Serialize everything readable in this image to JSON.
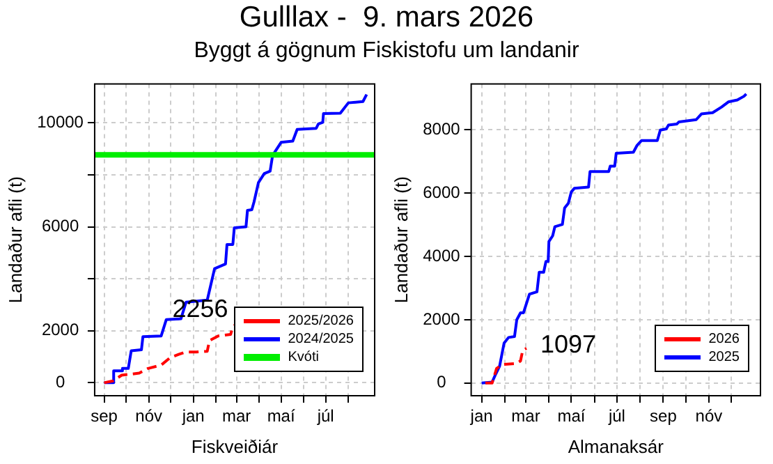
{
  "chart_data": [
    {
      "type": "line",
      "title": "Gulllax -  9. mars 2026",
      "subtitle": "Byggt á gögnum Fiskistofu um landanir",
      "xlabel": "Fiskveiðiár",
      "ylabel": "Landaður afli (t)",
      "xlim": [
        "2025-08-19",
        "2026-09-06"
      ],
      "ylim": [
        -500,
        11500
      ],
      "xticks": [
        {
          "value": "2025-09-01",
          "label": "sep"
        },
        {
          "value": "2025-10-01",
          "label": null
        },
        {
          "value": "2025-11-01",
          "label": "nóv"
        },
        {
          "value": "2025-12-01",
          "label": null
        },
        {
          "value": "2026-01-01",
          "label": "jan"
        },
        {
          "value": "2026-02-01",
          "label": null
        },
        {
          "value": "2026-03-01",
          "label": "mar"
        },
        {
          "value": "2026-04-01",
          "label": null
        },
        {
          "value": "2026-05-01",
          "label": "maí"
        },
        {
          "value": "2026-06-01",
          "label": null
        },
        {
          "value": "2026-07-01",
          "label": "júl"
        },
        {
          "value": "2026-08-01",
          "label": null
        }
      ],
      "yticks": [
        0,
        2000,
        {
          "value": 4000,
          "label": null
        },
        6000,
        {
          "value": 8000,
          "label": null
        },
        10000
      ],
      "grid": true,
      "legend": "bottom right",
      "marker": "none",
      "series": [
        {
          "name": "2025/2026",
          "color": "#ff0000",
          "line_style": "dashed",
          "x": [
            "2025-09-01",
            "2025-09-13",
            "2025-09-25",
            "2025-10-19",
            "2025-10-31",
            "2025-11-18",
            "2025-11-30",
            "2025-12-12",
            "2025-12-21",
            "2026-01-05",
            "2026-01-20",
            "2026-01-23",
            "2026-02-04",
            "2026-02-21",
            "2026-02-24",
            "2026-03-01"
          ],
          "values": [
            0,
            70,
            290,
            370,
            550,
            680,
            960,
            1090,
            1180,
            1180,
            1210,
            1620,
            1800,
            1860,
            2160,
            2256
          ],
          "value_labels": [
            null,
            null,
            null,
            null,
            null,
            null,
            null,
            null,
            null,
            null,
            null,
            null,
            null,
            null,
            null,
            "2256"
          ]
        },
        {
          "name": "2024/2025",
          "color": "#0000ff",
          "line_style": "solid",
          "x": [
            "2025-09-01",
            "2025-09-13",
            "2025-09-14",
            "2025-09-25",
            "2025-09-26",
            "2025-10-04",
            "2025-10-08",
            "2025-10-22",
            "2025-10-24",
            "2025-11-18",
            "2025-11-25",
            "2025-12-15",
            "2025-12-22",
            "2026-01-20",
            "2026-01-30",
            "2026-02-14",
            "2026-02-16",
            "2026-02-24",
            "2026-02-26",
            "2026-03-14",
            "2026-03-16",
            "2026-03-22",
            "2026-03-25",
            "2026-03-31",
            "2026-04-08",
            "2026-04-16",
            "2026-04-19",
            "2026-04-22",
            "2026-05-01",
            "2026-05-17",
            "2026-05-23",
            "2026-06-18",
            "2026-06-21",
            "2026-06-27",
            "2026-06-28",
            "2026-07-21",
            "2026-08-01",
            "2026-08-21",
            "2026-08-26"
          ],
          "values": [
            0,
            0,
            460,
            460,
            550,
            550,
            1230,
            1270,
            1770,
            1800,
            2430,
            2460,
            3100,
            3180,
            4390,
            4570,
            5320,
            5320,
            5960,
            6000,
            6630,
            6660,
            6960,
            7700,
            8050,
            8140,
            8680,
            8860,
            9250,
            9300,
            9750,
            9790,
            9960,
            10020,
            10360,
            10370,
            10770,
            10820,
            11090
          ]
        }
      ],
      "ref_lines": [
        {
          "axis": "y",
          "value": 8770,
          "label": "Kvóti",
          "color": "#00ee00"
        }
      ]
    },
    {
      "type": "line",
      "xlabel": "Almanaksár",
      "ylabel": "Landaður afli (t)",
      "xlim": [
        "2025-12-18",
        "2027-01-09"
      ],
      "ylim": [
        -400,
        9450
      ],
      "xticks": [
        {
          "value": "2026-01-01",
          "label": "jan"
        },
        {
          "value": "2026-02-01",
          "label": null
        },
        {
          "value": "2026-03-01",
          "label": "mar"
        },
        {
          "value": "2026-04-01",
          "label": null
        },
        {
          "value": "2026-05-01",
          "label": "maí"
        },
        {
          "value": "2026-06-01",
          "label": null
        },
        {
          "value": "2026-07-01",
          "label": "júl"
        },
        {
          "value": "2026-08-01",
          "label": null
        },
        {
          "value": "2026-09-01",
          "label": "sep"
        },
        {
          "value": "2026-10-01",
          "label": null
        },
        {
          "value": "2026-11-01",
          "label": "nóv"
        },
        {
          "value": "2026-12-01",
          "label": null
        }
      ],
      "yticks": [
        0,
        2000,
        4000,
        6000,
        8000
      ],
      "grid": true,
      "legend": "bottom right",
      "marker": "none",
      "series": [
        {
          "name": "2026",
          "color": "#ff0000",
          "line_style": "dashed",
          "x": [
            "2026-01-06",
            "2026-01-15",
            "2026-01-21",
            "2026-01-25",
            "2026-01-31",
            "2026-02-17",
            "2026-02-22",
            "2026-02-25",
            "2026-03-02"
          ],
          "values": [
            0,
            0,
            460,
            530,
            590,
            620,
            700,
            1040,
            1097
          ],
          "value_labels": [
            null,
            null,
            null,
            null,
            null,
            null,
            null,
            null,
            "1097"
          ]
        },
        {
          "name": "2025",
          "color": "#0000ff",
          "line_style": "solid",
          "x": [
            "2026-01-01",
            "2026-01-15",
            "2026-01-19",
            "2026-01-25",
            "2026-01-31",
            "2026-02-06",
            "2026-02-14",
            "2026-02-17",
            "2026-02-22",
            "2026-02-26",
            "2026-03-06",
            "2026-03-16",
            "2026-03-19",
            "2026-03-25",
            "2026-03-28",
            "2026-03-31",
            "2026-04-01",
            "2026-04-06",
            "2026-04-09",
            "2026-04-19",
            "2026-04-22",
            "2026-04-27",
            "2026-05-01",
            "2026-05-05",
            "2026-05-24",
            "2026-05-26",
            "2026-06-20",
            "2026-06-22",
            "2026-06-28",
            "2026-06-30",
            "2026-07-23",
            "2026-07-28",
            "2026-08-03",
            "2026-08-24",
            "2026-08-28",
            "2026-09-05",
            "2026-09-08",
            "2026-09-19",
            "2026-09-22",
            "2026-10-15",
            "2026-10-22",
            "2026-11-06",
            "2026-11-18",
            "2026-11-27",
            "2026-12-09",
            "2026-12-18",
            "2026-12-21"
          ],
          "values": [
            0,
            30,
            240,
            530,
            1260,
            1440,
            1470,
            2000,
            2220,
            2220,
            2810,
            2880,
            3500,
            3500,
            3840,
            3840,
            4470,
            4650,
            4940,
            5010,
            5530,
            5680,
            6040,
            6150,
            6190,
            6680,
            6680,
            6850,
            6850,
            7260,
            7290,
            7510,
            7660,
            7660,
            7990,
            8030,
            8150,
            8180,
            8250,
            8320,
            8500,
            8540,
            8720,
            8880,
            8940,
            9060,
            9130
          ]
        }
      ]
    }
  ]
}
